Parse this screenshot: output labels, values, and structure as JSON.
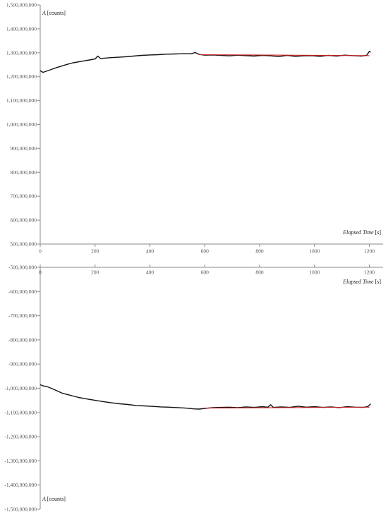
{
  "chart_data": [
    {
      "type": "line",
      "xlabel": "Elapsed Time [s]",
      "ylabel": "A [counts]",
      "xlim": [
        0,
        1250
      ],
      "ylim": [
        500000000,
        1500000000
      ],
      "x_ticks": [
        0,
        200,
        400,
        600,
        800,
        1000,
        1200
      ],
      "x_tick_labels": [
        "0",
        "200",
        "400",
        "600",
        "800",
        "1000",
        "1200"
      ],
      "y_ticks": [
        500000000,
        600000000,
        700000000,
        800000000,
        900000000,
        1000000000,
        1100000000,
        1200000000,
        1300000000,
        1400000000,
        1500000000
      ],
      "y_tick_labels": [
        "500,000,000",
        "600,000,000",
        "700,000,000",
        "800,000,000",
        "900,000,000",
        "1,000,000,000",
        "1,100,000,000",
        "1,200,000,000",
        "1,300,000,000",
        "1,400,000,000",
        "1,500,000,000"
      ],
      "grid": false,
      "series": [
        {
          "color": "#111111",
          "points": [
            [
              0,
              1225000000
            ],
            [
              10,
              1218000000
            ],
            [
              25,
              1224000000
            ],
            [
              40,
              1230000000
            ],
            [
              60,
              1238000000
            ],
            [
              80,
              1245000000
            ],
            [
              100,
              1252000000
            ],
            [
              120,
              1258000000
            ],
            [
              140,
              1262000000
            ],
            [
              160,
              1266000000
            ],
            [
              180,
              1270000000
            ],
            [
              200,
              1274000000
            ],
            [
              210,
              1286000000
            ],
            [
              220,
              1276000000
            ],
            [
              250,
              1279000000
            ],
            [
              280,
              1281000000
            ],
            [
              310,
              1283000000
            ],
            [
              340,
              1286000000
            ],
            [
              370,
              1289000000
            ],
            [
              400,
              1291000000
            ],
            [
              430,
              1292000000
            ],
            [
              460,
              1294000000
            ],
            [
              490,
              1295000000
            ],
            [
              520,
              1296000000
            ],
            [
              550,
              1296000000
            ],
            [
              565,
              1301000000
            ],
            [
              580,
              1293000000
            ],
            [
              600,
              1290000000
            ],
            [
              630,
              1291000000
            ],
            [
              660,
              1289000000
            ],
            [
              690,
              1287000000
            ],
            [
              720,
              1290000000
            ],
            [
              750,
              1288000000
            ],
            [
              780,
              1286000000
            ],
            [
              810,
              1289000000
            ],
            [
              840,
              1287000000
            ],
            [
              870,
              1284000000
            ],
            [
              900,
              1289000000
            ],
            [
              930,
              1285000000
            ],
            [
              960,
              1287000000
            ],
            [
              990,
              1288000000
            ],
            [
              1020,
              1285000000
            ],
            [
              1050,
              1289000000
            ],
            [
              1080,
              1286000000
            ],
            [
              1110,
              1290000000
            ],
            [
              1140,
              1288000000
            ],
            [
              1170,
              1286000000
            ],
            [
              1190,
              1289000000
            ],
            [
              1200,
              1306000000
            ],
            [
              1205,
              1302000000
            ]
          ]
        },
        {
          "color": "#cc2020",
          "points": [
            [
              580,
              1292000000
            ],
            [
              1200,
              1288000000
            ]
          ]
        }
      ]
    },
    {
      "type": "line",
      "xlabel": "Elapsed Time [s]",
      "ylabel": "A [counts]",
      "xlim": [
        0,
        1250
      ],
      "ylim": [
        -1500000000,
        -500000000
      ],
      "x_ticks": [
        0,
        200,
        400,
        600,
        800,
        1000,
        1200
      ],
      "x_tick_labels": [
        "0",
        "200",
        "400",
        "600",
        "800",
        "1000",
        "1200"
      ],
      "y_ticks": [
        -500000000,
        -600000000,
        -700000000,
        -800000000,
        -900000000,
        -1000000000,
        -1100000000,
        -1200000000,
        -1300000000,
        -1400000000,
        -1500000000
      ],
      "y_tick_labels": [
        "-500,000,000",
        "-600,000,000",
        "-700,000,000",
        "-800,000,000",
        "-900,000,000",
        "-1,000,000,000",
        "-1,100,000,000",
        "-1,200,000,000",
        "-1,300,000,000",
        "-1,400,000,000",
        "-1,500,000,000"
      ],
      "grid": false,
      "series": [
        {
          "color": "#111111",
          "points": [
            [
              0,
              -985000000
            ],
            [
              10,
              -990000000
            ],
            [
              25,
              -993000000
            ],
            [
              40,
              -1000000000
            ],
            [
              60,
              -1010000000
            ],
            [
              80,
              -1020000000
            ],
            [
              100,
              -1026000000
            ],
            [
              120,
              -1032000000
            ],
            [
              140,
              -1038000000
            ],
            [
              160,
              -1042000000
            ],
            [
              180,
              -1046000000
            ],
            [
              200,
              -1050000000
            ],
            [
              230,
              -1055000000
            ],
            [
              260,
              -1060000000
            ],
            [
              290,
              -1064000000
            ],
            [
              320,
              -1067000000
            ],
            [
              350,
              -1071000000
            ],
            [
              380,
              -1073000000
            ],
            [
              410,
              -1075000000
            ],
            [
              440,
              -1077000000
            ],
            [
              470,
              -1078000000
            ],
            [
              500,
              -1080000000
            ],
            [
              530,
              -1082000000
            ],
            [
              560,
              -1085000000
            ],
            [
              580,
              -1086000000
            ],
            [
              600,
              -1083000000
            ],
            [
              630,
              -1080000000
            ],
            [
              660,
              -1079000000
            ],
            [
              690,
              -1078000000
            ],
            [
              720,
              -1080000000
            ],
            [
              750,
              -1077000000
            ],
            [
              780,
              -1079000000
            ],
            [
              810,
              -1076000000
            ],
            [
              830,
              -1078000000
            ],
            [
              840,
              -1068000000
            ],
            [
              850,
              -1079000000
            ],
            [
              880,
              -1077000000
            ],
            [
              910,
              -1079000000
            ],
            [
              940,
              -1074000000
            ],
            [
              970,
              -1078000000
            ],
            [
              1000,
              -1076000000
            ],
            [
              1030,
              -1079000000
            ],
            [
              1060,
              -1077000000
            ],
            [
              1090,
              -1080000000
            ],
            [
              1120,
              -1076000000
            ],
            [
              1150,
              -1078000000
            ],
            [
              1180,
              -1079000000
            ],
            [
              1195,
              -1075000000
            ],
            [
              1205,
              -1064000000
            ]
          ]
        },
        {
          "color": "#cc2020",
          "points": [
            [
              600,
              -1082000000
            ],
            [
              1200,
              -1078000000
            ]
          ]
        }
      ]
    }
  ]
}
